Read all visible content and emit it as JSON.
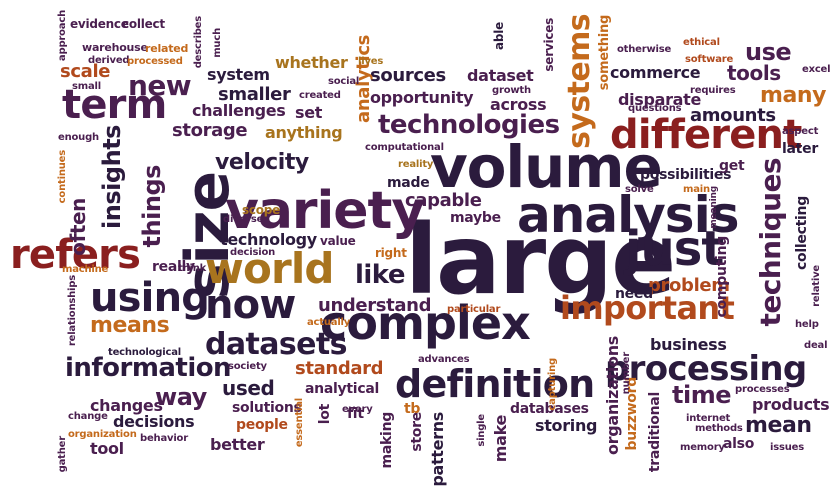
{
  "colors": {
    "dark_purple": "#2b1b3d",
    "plum": "#4a1f4f",
    "deep_red": "#8a1f1f",
    "rust": "#b14a1d",
    "brown": "#7a4a1a",
    "orange": "#c46a1c",
    "gold": "#a8741e"
  },
  "words": [
    {
      "text": "large"
    },
    {
      "text": "volume"
    },
    {
      "text": "variety"
    },
    {
      "text": "analysis"
    },
    {
      "text": "complex"
    },
    {
      "text": "size"
    },
    {
      "text": "world"
    },
    {
      "text": "just"
    },
    {
      "text": "definition"
    },
    {
      "text": "using"
    },
    {
      "text": "now"
    },
    {
      "text": "processing"
    },
    {
      "text": "different"
    },
    {
      "text": "refers"
    },
    {
      "text": "term"
    },
    {
      "text": "technologies"
    },
    {
      "text": "datasets"
    },
    {
      "text": "techniques"
    },
    {
      "text": "important"
    },
    {
      "text": "systems"
    },
    {
      "text": "things"
    },
    {
      "text": "new"
    },
    {
      "text": "information"
    },
    {
      "text": "insights"
    },
    {
      "text": "velocity"
    },
    {
      "text": "like"
    },
    {
      "text": "use"
    },
    {
      "text": "means"
    },
    {
      "text": "way"
    },
    {
      "text": "mean"
    },
    {
      "text": "sources"
    },
    {
      "text": "tools"
    },
    {
      "text": "time"
    },
    {
      "text": "many"
    },
    {
      "text": "amounts"
    },
    {
      "text": "analytics"
    },
    {
      "text": "storage"
    },
    {
      "text": "understand"
    },
    {
      "text": "used"
    },
    {
      "text": "standard"
    },
    {
      "text": "business"
    },
    {
      "text": "smaller"
    },
    {
      "text": "scale"
    },
    {
      "text": "opportunity"
    },
    {
      "text": "capable"
    },
    {
      "text": "technology"
    },
    {
      "text": "often"
    },
    {
      "text": "problem"
    },
    {
      "text": "disparate"
    },
    {
      "text": "possibilities"
    },
    {
      "text": "products"
    },
    {
      "text": "decisions"
    },
    {
      "text": "solutions"
    },
    {
      "text": "storing"
    },
    {
      "text": "databases"
    },
    {
      "text": "commerce"
    },
    {
      "text": "dataset"
    },
    {
      "text": "across"
    },
    {
      "text": "system"
    },
    {
      "text": "whether"
    },
    {
      "text": "challenges"
    },
    {
      "text": "anything"
    },
    {
      "text": "set"
    },
    {
      "text": "need"
    },
    {
      "text": "maybe"
    },
    {
      "text": "made"
    },
    {
      "text": "changes"
    },
    {
      "text": "people"
    },
    {
      "text": "better"
    },
    {
      "text": "tool"
    },
    {
      "text": "analytical"
    },
    {
      "text": "making"
    },
    {
      "text": "patterns"
    },
    {
      "text": "store"
    },
    {
      "text": "make"
    },
    {
      "text": "computing"
    },
    {
      "text": "collecting"
    },
    {
      "text": "organizations"
    },
    {
      "text": "buzzword"
    },
    {
      "text": "traditional"
    },
    {
      "text": "also"
    },
    {
      "text": "get"
    },
    {
      "text": "later"
    },
    {
      "text": "tb"
    },
    {
      "text": "lot"
    },
    {
      "text": "fit"
    },
    {
      "text": "really"
    },
    {
      "text": "value"
    },
    {
      "text": "right"
    },
    {
      "text": "something"
    },
    {
      "text": "services"
    },
    {
      "text": "able"
    },
    {
      "text": "scope"
    },
    {
      "text": "evidence"
    },
    {
      "text": "collect"
    },
    {
      "text": "approach"
    },
    {
      "text": "describes"
    },
    {
      "text": "much"
    },
    {
      "text": "warehouse"
    },
    {
      "text": "related"
    },
    {
      "text": "derived"
    },
    {
      "text": "processed"
    },
    {
      "text": "small"
    },
    {
      "text": "social"
    },
    {
      "text": "created"
    },
    {
      "text": "lives"
    },
    {
      "text": "growth"
    },
    {
      "text": "otherwise"
    },
    {
      "text": "ethical"
    },
    {
      "text": "software"
    },
    {
      "text": "excel"
    },
    {
      "text": "requires"
    },
    {
      "text": "questions"
    },
    {
      "text": "aspect"
    },
    {
      "text": "enough"
    },
    {
      "text": "continues"
    },
    {
      "text": "computational"
    },
    {
      "text": "reality"
    },
    {
      "text": "main"
    },
    {
      "text": "solve"
    },
    {
      "text": "meaning"
    },
    {
      "text": "diverse"
    },
    {
      "text": "decision"
    },
    {
      "text": "machine"
    },
    {
      "text": "think"
    },
    {
      "text": "relationships"
    },
    {
      "text": "relative"
    },
    {
      "text": "help"
    },
    {
      "text": "deal"
    },
    {
      "text": "particular"
    },
    {
      "text": "actually"
    },
    {
      "text": "technological"
    },
    {
      "text": "society"
    },
    {
      "text": "advances"
    },
    {
      "text": "capturing"
    },
    {
      "text": "number"
    },
    {
      "text": "processes"
    },
    {
      "text": "internet"
    },
    {
      "text": "methods"
    },
    {
      "text": "memory"
    },
    {
      "text": "issues"
    },
    {
      "text": "single"
    },
    {
      "text": "every"
    },
    {
      "text": "essential"
    },
    {
      "text": "change"
    },
    {
      "text": "organization"
    },
    {
      "text": "behavior"
    },
    {
      "text": "gather"
    }
  ]
}
